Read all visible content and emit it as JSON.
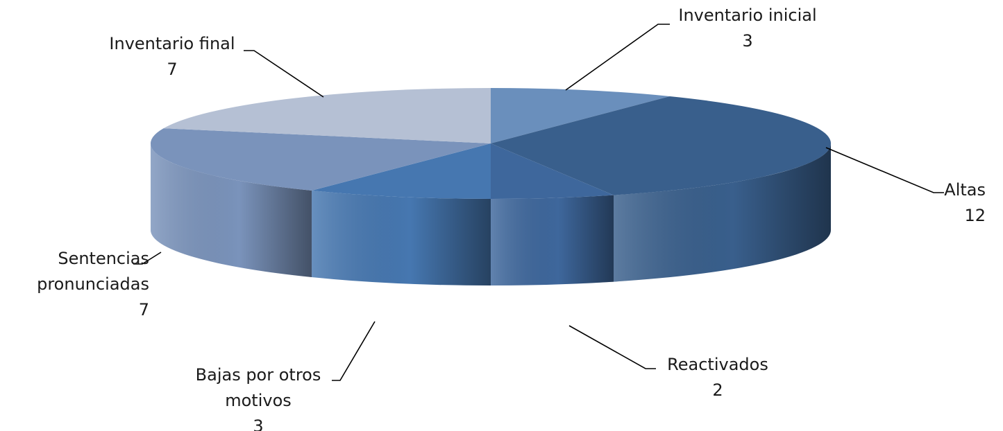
{
  "chart_data": {
    "type": "pie",
    "title": "",
    "style": "3d-exploded-none",
    "slices": [
      {
        "category": "Inventario inicial",
        "value": 3,
        "value_label": "3",
        "color": "#6a8fbc"
      },
      {
        "category": "Altas",
        "value": 12,
        "value_label": "12",
        "color": "#395f8c"
      },
      {
        "category": "Reactivados",
        "value": 2,
        "value_label": "2",
        "color": "#3e679c"
      },
      {
        "category": "Bajas por otros motivos",
        "value": 3,
        "value_label": "3",
        "color": "#4677b0"
      },
      {
        "category": "Sentencias pronunciadas",
        "value": 7,
        "value_label": "7",
        "color": "#7a93bb"
      },
      {
        "category": "Inventario final",
        "value": 7,
        "value_label": "7",
        "color": "#b5c0d4"
      }
    ]
  }
}
